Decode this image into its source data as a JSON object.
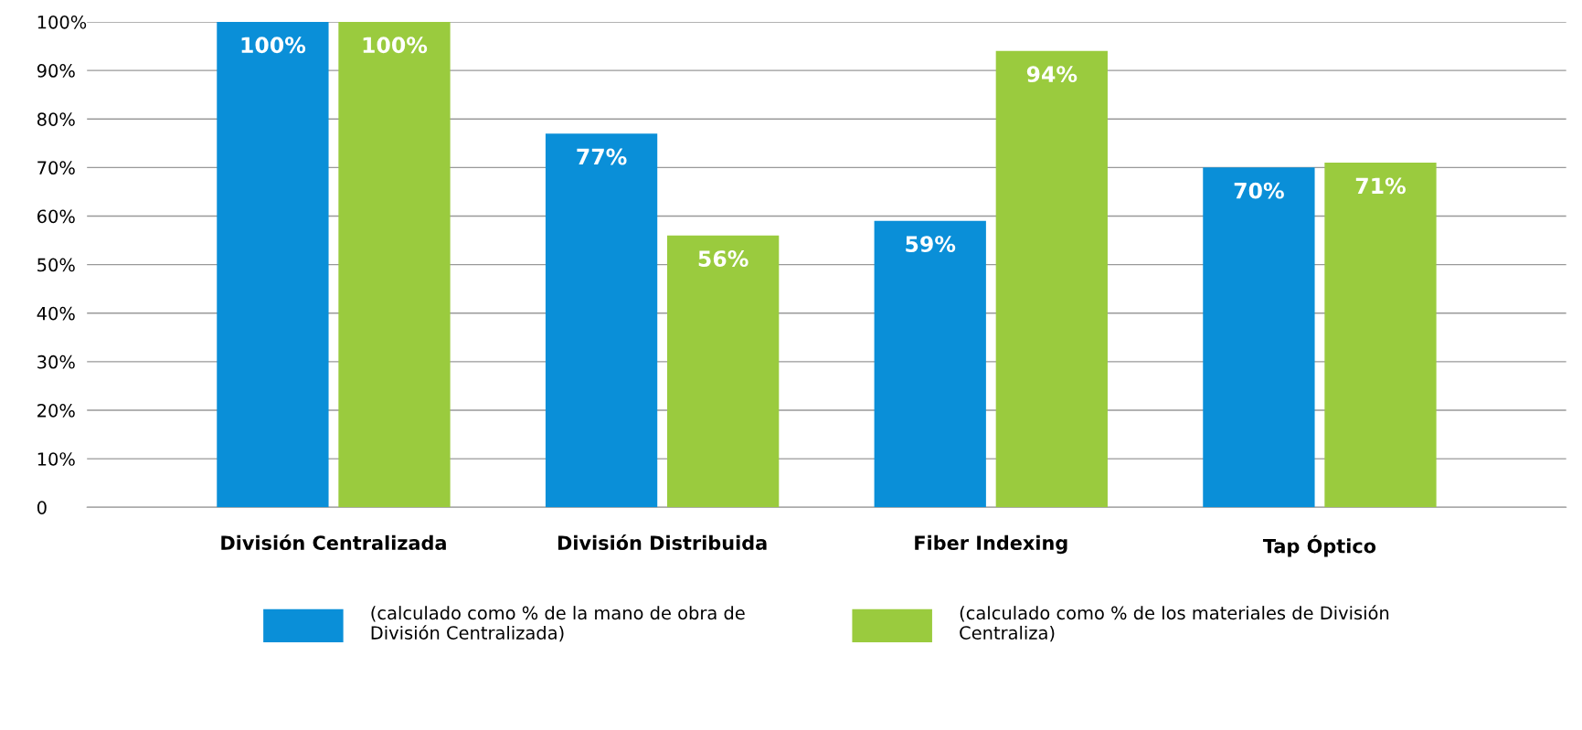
{
  "chart_data": {
    "type": "bar",
    "categories": [
      "División Centralizada",
      "División Distribuida",
      "Fiber Indexing",
      "Tap Óptico"
    ],
    "series": [
      {
        "name": "(calculado como % de la mano de obra de\nDivisión Centralizada)",
        "color": "#0a8fd8",
        "values": [
          100,
          77,
          59,
          70
        ],
        "value_labels": [
          "100%",
          "77%",
          "59%",
          "70%"
        ]
      },
      {
        "name": "(calculado como % de los materiales de División\nCentraliza)",
        "color": "#9acb3e",
        "values": [
          100,
          56,
          94,
          71
        ],
        "value_labels": [
          "100%",
          "56%",
          "94%",
          "71%"
        ]
      }
    ],
    "ylim": [
      0,
      100
    ],
    "yticks": [
      {
        "value": 0,
        "label": "0"
      },
      {
        "value": 10,
        "label": "10%"
      },
      {
        "value": 20,
        "label": "20%"
      },
      {
        "value": 30,
        "label": "30%"
      },
      {
        "value": 40,
        "label": "40%"
      },
      {
        "value": 50,
        "label": "50%"
      },
      {
        "value": 60,
        "label": "60%"
      },
      {
        "value": 70,
        "label": "70%"
      },
      {
        "value": 80,
        "label": "80%"
      },
      {
        "value": 90,
        "label": "90%"
      },
      {
        "value": 100,
        "label": "100%"
      }
    ],
    "grid": "y",
    "legend": "bottom"
  }
}
